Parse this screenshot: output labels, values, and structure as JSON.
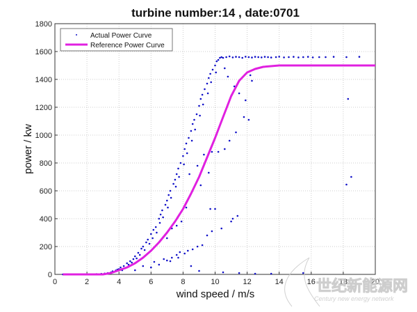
{
  "chart_data": {
    "type": "scatter",
    "title": "turbine number:14 , date:0701",
    "xlabel": "wind speed / m/s",
    "ylabel": "power / kw",
    "xlim": [
      0,
      20
    ],
    "ylim": [
      0,
      1800
    ],
    "xticks": [
      0,
      2,
      4,
      6,
      8,
      10,
      12,
      14,
      16,
      18,
      20
    ],
    "yticks": [
      0,
      200,
      400,
      600,
      800,
      1000,
      1200,
      1400,
      1600,
      1800
    ],
    "grid": true,
    "legend_position": "top-left",
    "colors": {
      "actual": "#1010c8",
      "reference": "#e020e0"
    },
    "series": [
      {
        "name": "Actual Power Curve",
        "kind": "scatter",
        "points": [
          [
            0.5,
            0
          ],
          [
            0.8,
            0
          ],
          [
            1.1,
            0
          ],
          [
            1.4,
            0
          ],
          [
            1.7,
            0
          ],
          [
            2.0,
            0
          ],
          [
            2.3,
            1
          ],
          [
            2.6,
            2
          ],
          [
            2.9,
            4
          ],
          [
            3.1,
            6
          ],
          [
            3.3,
            10
          ],
          [
            3.5,
            15
          ],
          [
            3.6,
            22
          ],
          [
            3.8,
            28
          ],
          [
            3.9,
            35
          ],
          [
            4.0,
            38
          ],
          [
            4.1,
            50
          ],
          [
            4.2,
            30
          ],
          [
            4.3,
            60
          ],
          [
            4.4,
            45
          ],
          [
            4.5,
            80
          ],
          [
            4.6,
            70
          ],
          [
            4.7,
            95
          ],
          [
            4.8,
            85
          ],
          [
            4.9,
            110
          ],
          [
            5.0,
            130
          ],
          [
            5.1,
            115
          ],
          [
            5.2,
            155
          ],
          [
            5.3,
            140
          ],
          [
            5.4,
            185
          ],
          [
            5.5,
            200
          ],
          [
            5.6,
            175
          ],
          [
            5.7,
            230
          ],
          [
            5.8,
            250
          ],
          [
            5.9,
            220
          ],
          [
            6.0,
            290
          ],
          [
            6.1,
            260
          ],
          [
            6.15,
            320
          ],
          [
            6.3,
            340
          ],
          [
            6.35,
            300
          ],
          [
            6.5,
            400
          ],
          [
            6.55,
            370
          ],
          [
            6.6,
            430
          ],
          [
            6.7,
            460
          ],
          [
            6.75,
            410
          ],
          [
            6.9,
            500
          ],
          [
            7.0,
            530
          ],
          [
            7.05,
            480
          ],
          [
            7.1,
            570
          ],
          [
            7.2,
            600
          ],
          [
            7.25,
            550
          ],
          [
            7.4,
            650
          ],
          [
            7.5,
            680
          ],
          [
            7.55,
            630
          ],
          [
            7.6,
            720
          ],
          [
            7.7,
            760
          ],
          [
            7.75,
            700
          ],
          [
            7.85,
            800
          ],
          [
            8.0,
            850
          ],
          [
            8.05,
            790
          ],
          [
            8.1,
            900
          ],
          [
            8.2,
            940
          ],
          [
            8.25,
            870
          ],
          [
            8.35,
            980
          ],
          [
            8.5,
            1030
          ],
          [
            8.55,
            960
          ],
          [
            8.6,
            1080
          ],
          [
            8.7,
            1110
          ],
          [
            8.75,
            1040
          ],
          [
            8.85,
            1150
          ],
          [
            9.0,
            1210
          ],
          [
            9.05,
            1140
          ],
          [
            9.1,
            1260
          ],
          [
            9.2,
            1290
          ],
          [
            9.25,
            1220
          ],
          [
            9.35,
            1330
          ],
          [
            9.5,
            1370
          ],
          [
            9.55,
            1300
          ],
          [
            9.6,
            1410
          ],
          [
            9.7,
            1440
          ],
          [
            9.75,
            1380
          ],
          [
            9.85,
            1470
          ],
          [
            10.0,
            1500
          ],
          [
            10.05,
            1450
          ],
          [
            10.1,
            1530
          ],
          [
            10.2,
            1540
          ],
          [
            10.3,
            1555
          ],
          [
            10.4,
            1560
          ],
          [
            10.5,
            1555
          ],
          [
            10.7,
            1560
          ],
          [
            10.9,
            1565
          ],
          [
            11.1,
            1558
          ],
          [
            11.3,
            1562
          ],
          [
            11.5,
            1560
          ],
          [
            11.7,
            1555
          ],
          [
            11.9,
            1563
          ],
          [
            12.1,
            1560
          ],
          [
            12.3,
            1557
          ],
          [
            12.5,
            1562
          ],
          [
            12.7,
            1560
          ],
          [
            12.9,
            1558
          ],
          [
            13.1,
            1562
          ],
          [
            13.3,
            1560
          ],
          [
            13.5,
            1557
          ],
          [
            13.8,
            1560
          ],
          [
            14.0,
            1563
          ],
          [
            14.3,
            1558
          ],
          [
            14.6,
            1560
          ],
          [
            14.9,
            1562
          ],
          [
            15.2,
            1558
          ],
          [
            15.5,
            1560
          ],
          [
            15.8,
            1562
          ],
          [
            16.1,
            1558
          ],
          [
            16.5,
            1560
          ],
          [
            16.9,
            1560
          ],
          [
            17.4,
            1562
          ],
          [
            18.2,
            1560
          ],
          [
            19.0,
            1562
          ],
          [
            10.6,
            1480
          ],
          [
            10.8,
            1420
          ],
          [
            11.2,
            1350
          ],
          [
            11.5,
            1300
          ],
          [
            11.9,
            1250
          ],
          [
            12.2,
            1430
          ],
          [
            12.3,
            1390
          ],
          [
            12.1,
            1110
          ],
          [
            11.8,
            1130
          ],
          [
            11.3,
            1020
          ],
          [
            10.9,
            960
          ],
          [
            10.6,
            900
          ],
          [
            10.2,
            880
          ],
          [
            9.8,
            880
          ],
          [
            9.6,
            730
          ],
          [
            9.3,
            860
          ],
          [
            9.1,
            640
          ],
          [
            8.9,
            780
          ],
          [
            8.6,
            600
          ],
          [
            8.4,
            720
          ],
          [
            8.2,
            480
          ],
          [
            7.9,
            380
          ],
          [
            7.6,
            350
          ],
          [
            7.3,
            330
          ],
          [
            7.0,
            260
          ],
          [
            9.7,
            470
          ],
          [
            10.0,
            470
          ],
          [
            10.4,
            330
          ],
          [
            11.0,
            380
          ],
          [
            11.1,
            400
          ],
          [
            11.4,
            420
          ],
          [
            5.0,
            30
          ],
          [
            5.5,
            60
          ],
          [
            6.0,
            50
          ],
          [
            6.5,
            70
          ],
          [
            7.0,
            100
          ],
          [
            7.3,
            120
          ],
          [
            7.6,
            140
          ],
          [
            7.8,
            160
          ],
          [
            8.1,
            150
          ],
          [
            8.3,
            170
          ],
          [
            8.6,
            180
          ],
          [
            8.9,
            200
          ],
          [
            9.2,
            210
          ],
          [
            9.5,
            280
          ],
          [
            9.8,
            310
          ],
          [
            6.2,
            90
          ],
          [
            6.8,
            110
          ],
          [
            7.2,
            95
          ],
          [
            7.7,
            120
          ],
          [
            8.5,
            60
          ],
          [
            9.0,
            25
          ],
          [
            10.5,
            15
          ],
          [
            11.5,
            10
          ],
          [
            12.5,
            5
          ],
          [
            13.5,
            5
          ],
          [
            15.5,
            10
          ],
          [
            18.3,
            1260
          ],
          [
            18.2,
            645
          ],
          [
            18.5,
            700
          ]
        ]
      },
      {
        "name": "Reference Power Curve",
        "kind": "line",
        "points": [
          [
            0.5,
            0
          ],
          [
            3,
            0
          ],
          [
            3.5,
            10
          ],
          [
            4,
            30
          ],
          [
            4.5,
            50
          ],
          [
            5,
            80
          ],
          [
            5.5,
            120
          ],
          [
            6,
            170
          ],
          [
            6.5,
            230
          ],
          [
            7,
            300
          ],
          [
            7.5,
            380
          ],
          [
            8,
            470
          ],
          [
            8.5,
            580
          ],
          [
            9,
            700
          ],
          [
            9.5,
            840
          ],
          [
            10,
            980
          ],
          [
            10.5,
            1130
          ],
          [
            11,
            1280
          ],
          [
            11.5,
            1390
          ],
          [
            12,
            1450
          ],
          [
            12.5,
            1475
          ],
          [
            13,
            1490
          ],
          [
            14,
            1500
          ],
          [
            20,
            1500
          ]
        ]
      }
    ]
  },
  "watermark": {
    "cn": "世纪新能源网",
    "en": "Century new energy network"
  }
}
